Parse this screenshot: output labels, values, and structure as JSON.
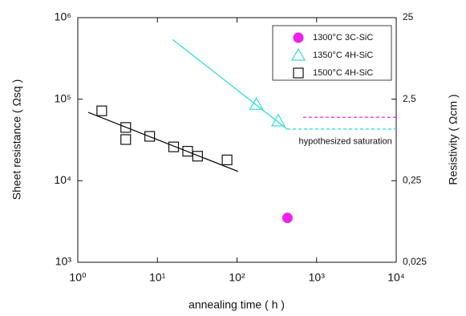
{
  "chart_data": {
    "type": "scatter",
    "xlabel": "annealing time ( h )",
    "ylabel": "Sheet resistance ( Ωsq )",
    "y2label": "Resistivity ( Ωcm )",
    "xlog": true,
    "ylog": true,
    "y2log": true,
    "xlim": [
      1,
      10000
    ],
    "ylim": [
      1000,
      1000000
    ],
    "y2lim": [
      0.025,
      25
    ],
    "xticks": [
      {
        "value": 1,
        "label": "10⁰"
      },
      {
        "value": 10,
        "label": "10¹"
      },
      {
        "value": 100,
        "label": "10²"
      },
      {
        "value": 1000,
        "label": "10³"
      },
      {
        "value": 10000,
        "label": "10⁴"
      }
    ],
    "yticks": [
      {
        "value": 1000,
        "label": "10³"
      },
      {
        "value": 10000,
        "label": "10⁴"
      },
      {
        "value": 100000,
        "label": "10⁵"
      },
      {
        "value": 1000000,
        "label": "10⁶"
      }
    ],
    "y2ticks": [
      {
        "value": 0.025,
        "label": "0,025"
      },
      {
        "value": 0.25,
        "label": "0,25"
      },
      {
        "value": 2.5,
        "label": "2,5"
      },
      25
    ],
    "series": [
      {
        "name": "1300°C  3C-SiC",
        "color": "#ee22ee",
        "marker": "circle",
        "x": [
          430
        ],
        "values": [
          3500
        ]
      },
      {
        "name": "1350°C  4H-SiC",
        "color": "#33dddd",
        "marker": "triangle",
        "x": [
          175,
          330
        ],
        "values": [
          86000,
          54000
        ]
      },
      {
        "name": "1500°C  4H-SiC",
        "color": "#111111",
        "marker": "square",
        "x": [
          2,
          4,
          4,
          8,
          16,
          24,
          32,
          75
        ],
        "values": [
          72000,
          45000,
          32000,
          35000,
          26000,
          23000,
          20000,
          18000
        ]
      }
    ],
    "lines": [
      {
        "color": "#111111",
        "dash": false,
        "x": [
          1.35,
          103
        ],
        "values": [
          69000,
          13000
        ]
      },
      {
        "color": "#33dddd",
        "dash": false,
        "x": [
          15.5,
          426
        ],
        "values": [
          540000,
          43000
        ]
      },
      {
        "color": "#33dddd",
        "dash": true,
        "x": [
          426,
          10000
        ],
        "values": [
          43000,
          43000
        ]
      },
      {
        "color": "#ee22ee",
        "dash": true,
        "x": [
          676,
          10000
        ],
        "values": [
          60000,
          60000
        ]
      }
    ],
    "annotation": {
      "text": "hypothesized saturation",
      "x": 2300,
      "y": 30000
    }
  }
}
